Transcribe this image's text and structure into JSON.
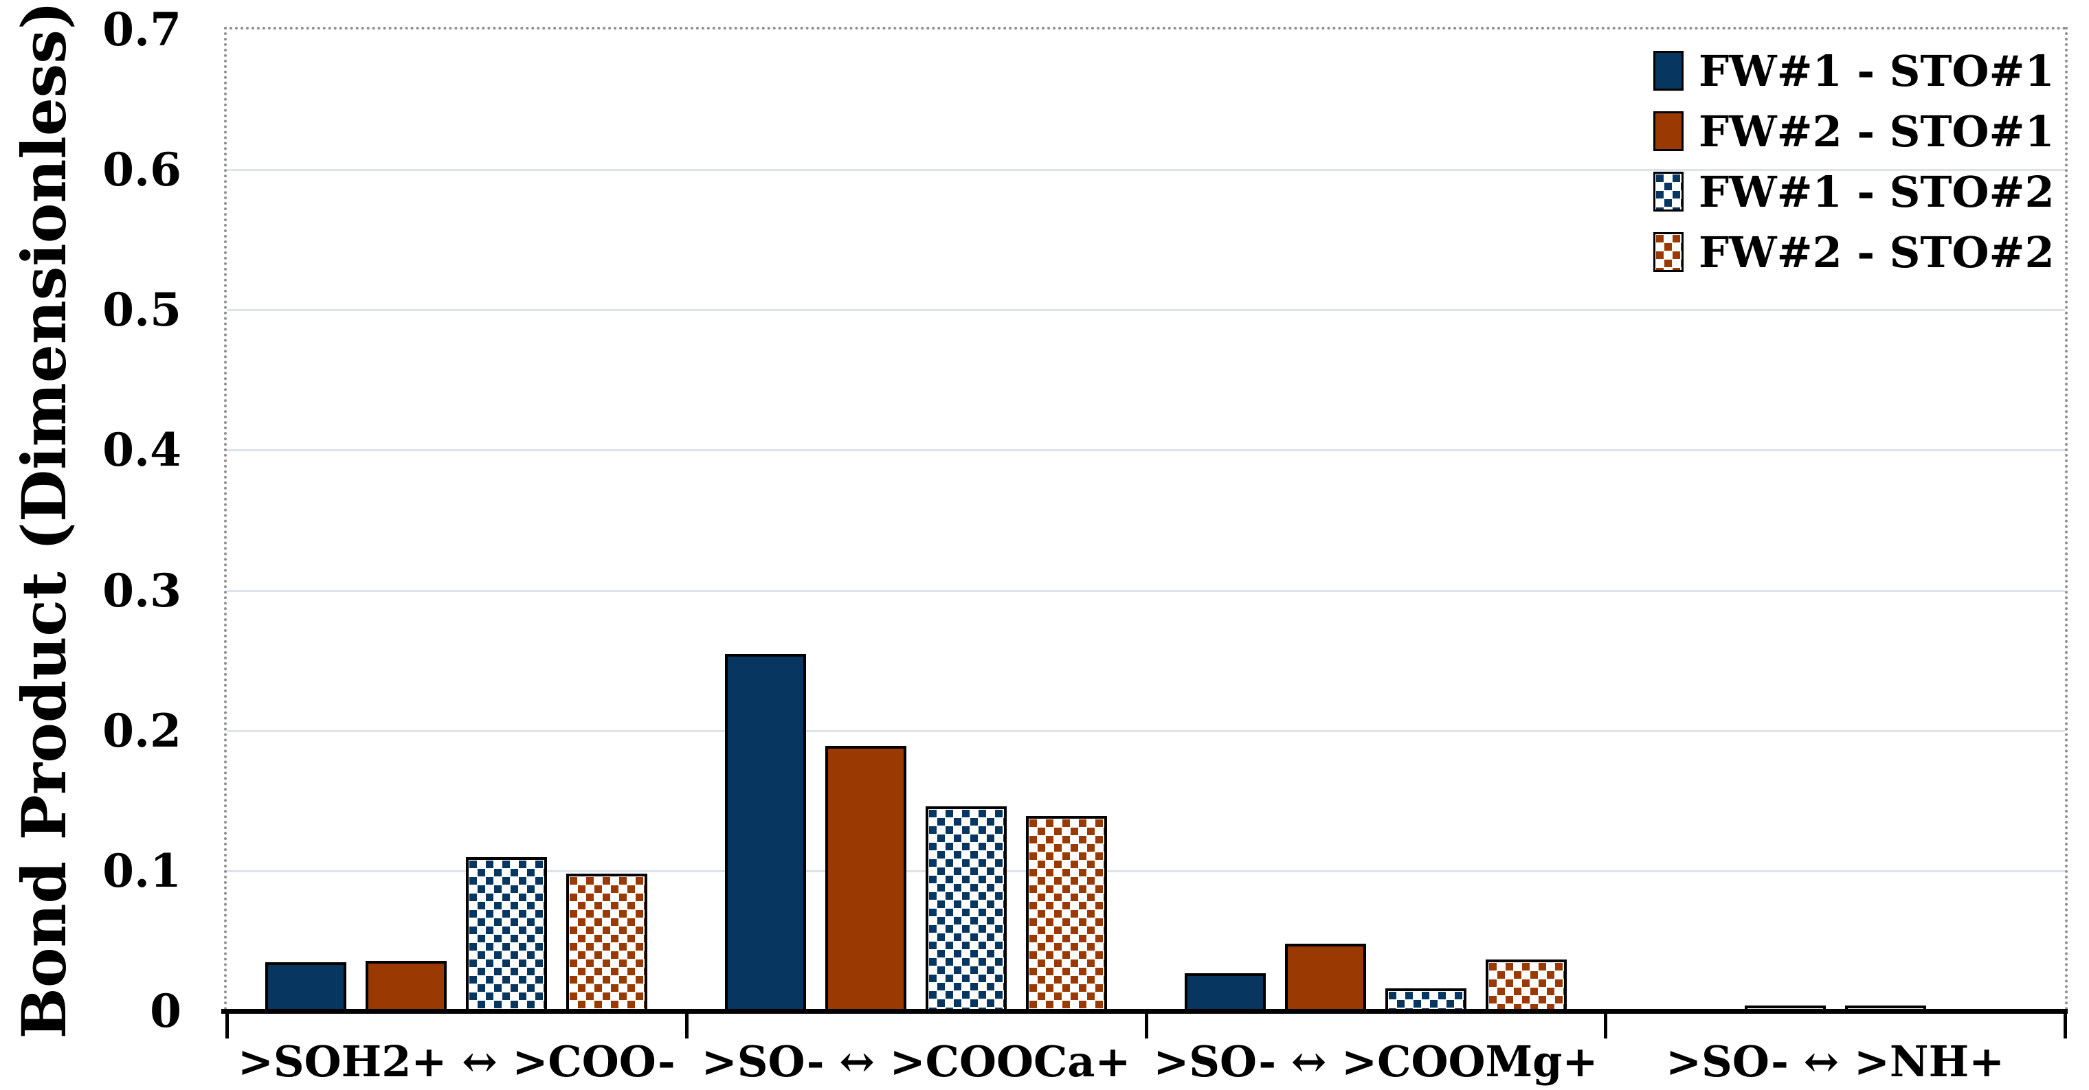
{
  "chart_data": {
    "type": "bar",
    "title": "",
    "xlabel": "",
    "ylabel": "Bond Product (Dimensionless)",
    "ylim": [
      0,
      0.7
    ],
    "ytick_step": 0.1,
    "ytick_labels": [
      "0",
      "0.1",
      "0.2",
      "0.3",
      "0.4",
      "0.5",
      "0.6",
      "0.7"
    ],
    "grid": true,
    "legend_position": "top-right",
    "categories": [
      ">SOH2+ ↔ >COO-",
      ">SO- ↔ >COOCa+",
      ">SO- ↔ >COOMg+",
      ">SO- ↔ >NH+"
    ],
    "series": [
      {
        "name": "FW#1 - STO#1",
        "pattern": false,
        "color_key": "navy",
        "values": [
          0.033,
          0.253,
          0.025,
          0
        ]
      },
      {
        "name": "FW#2 - STO#1",
        "pattern": false,
        "color_key": "rust",
        "values": [
          0.034,
          0.187,
          0.046,
          0
        ]
      },
      {
        "name": "FW#1 - STO#2",
        "pattern": true,
        "color_key": "navy",
        "values": [
          0.108,
          0.144,
          0.014,
          0.002
        ]
      },
      {
        "name": "FW#2 - STO#2",
        "pattern": true,
        "color_key": "rust",
        "values": [
          0.096,
          0.137,
          0.035,
          0.002
        ]
      }
    ],
    "colors": {
      "navy": "#073660",
      "rust": "#9A3A02",
      "gridline": "#dce3ea",
      "plot_border": "#8f8f8f",
      "axis": "#000000",
      "pattern_background": "#ffffff"
    }
  }
}
